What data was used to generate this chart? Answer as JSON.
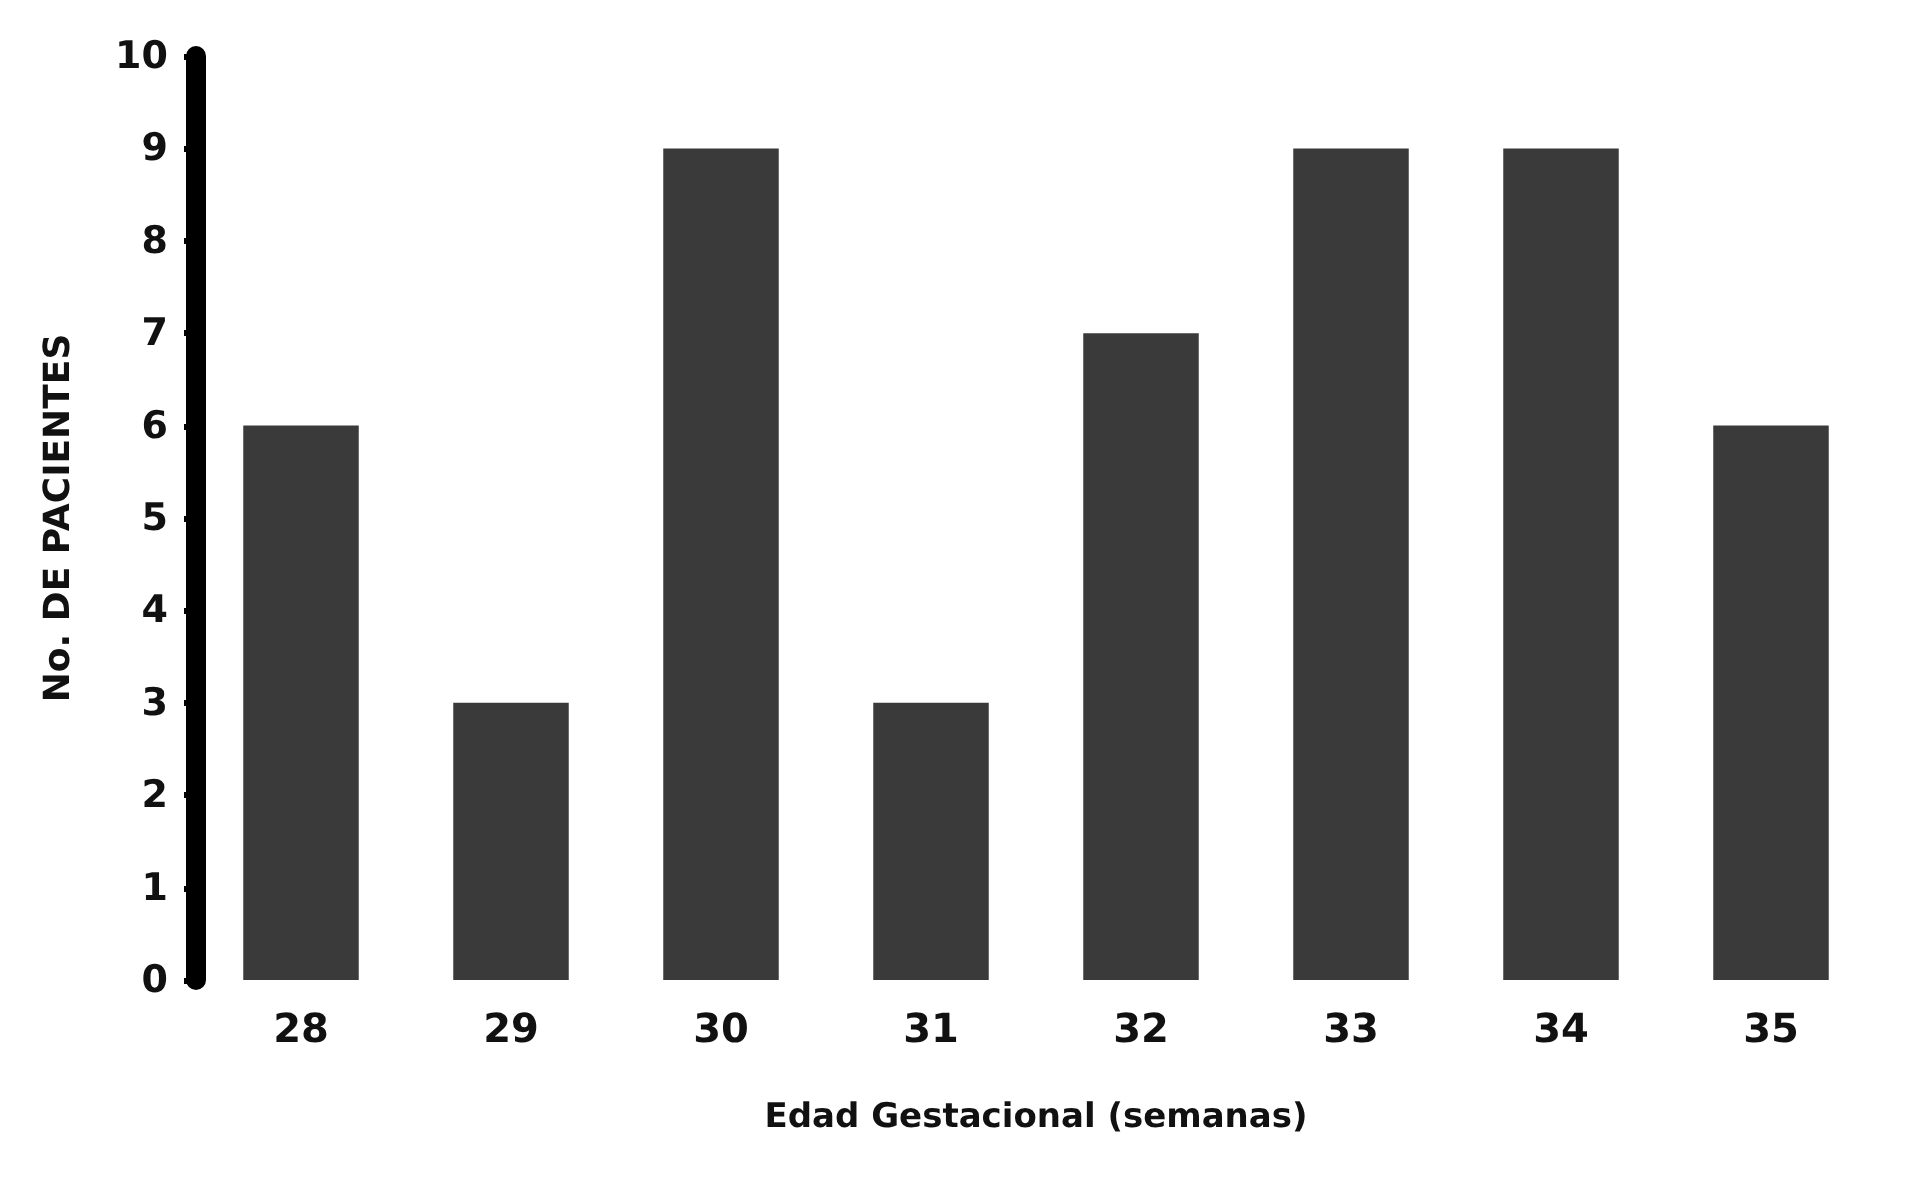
{
  "chart_data": {
    "type": "bar",
    "xlabel": "Edad Gestacional (semanas)",
    "ylabel": "No. DE PACIENTES",
    "categories": [
      "28",
      "29",
      "30",
      "31",
      "32",
      "33",
      "34",
      "35"
    ],
    "values": [
      6,
      3,
      9,
      3,
      7,
      9,
      9,
      6
    ],
    "color": "#3a3a3a",
    "ylim": [
      0,
      10
    ],
    "yticks": [
      0,
      1,
      2,
      3,
      4,
      5,
      6,
      7,
      8,
      9,
      10
    ],
    "grid": false
  }
}
